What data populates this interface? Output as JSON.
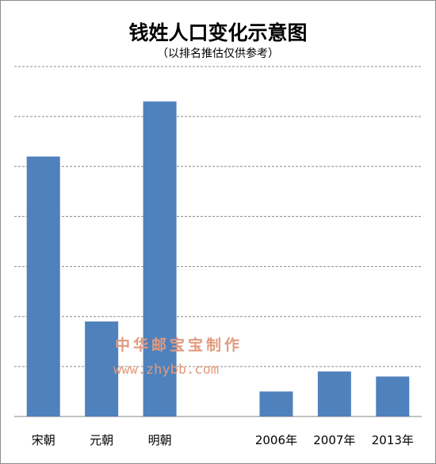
{
  "chart_data": {
    "type": "bar",
    "title": "钱姓人口变化示意图",
    "subtitle": "（以排名推估仅供参考）",
    "categories": [
      "宋朝",
      "元朝",
      "明朝",
      "",
      "2006年",
      "2007年",
      "2013年"
    ],
    "values": [
      5.2,
      1.9,
      6.3,
      null,
      0.5,
      0.9,
      0.8
    ],
    "ylim": [
      0,
      7
    ],
    "grid": true,
    "color": "#4f81bd"
  },
  "watermark": {
    "line1": "中华邮宝宝制作",
    "line2": "www.zhybb.com",
    "color": "#e29a7e"
  }
}
